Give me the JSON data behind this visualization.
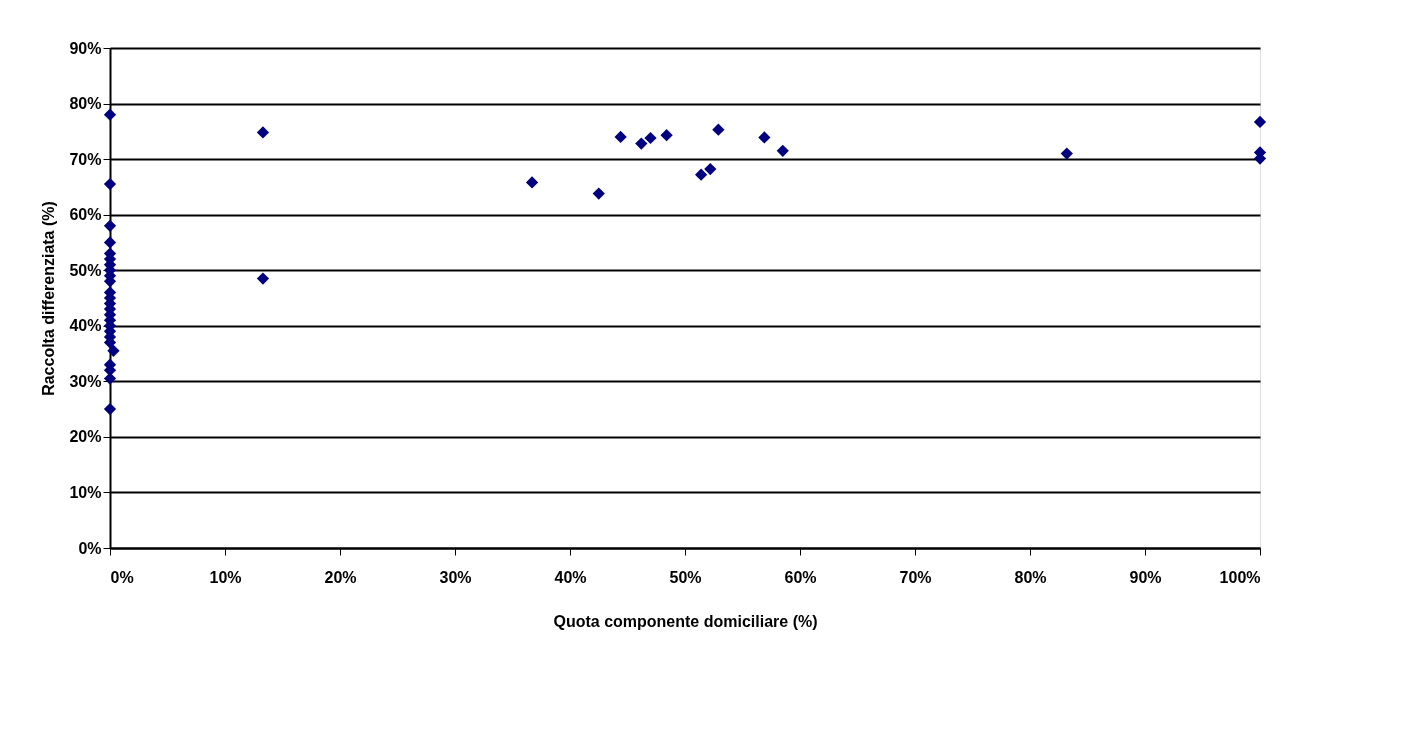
{
  "chart_data": {
    "type": "scatter",
    "xlabel": "Quota componente domiciliare (%)",
    "ylabel": "Raccolta differenziata (%)",
    "marker": "diamond",
    "grid": "y",
    "legend": false,
    "xlim": [
      0,
      100
    ],
    "ylim": [
      0,
      90
    ],
    "xticks": [
      {
        "value": 0,
        "label": "0%"
      },
      {
        "value": 10,
        "label": "10%"
      },
      {
        "value": 20,
        "label": "20%"
      },
      {
        "value": 30,
        "label": "30%"
      },
      {
        "value": 40,
        "label": "40%"
      },
      {
        "value": 50,
        "label": "50%"
      },
      {
        "value": 60,
        "label": "60%"
      },
      {
        "value": 70,
        "label": "70%"
      },
      {
        "value": 80,
        "label": "80%"
      },
      {
        "value": 90,
        "label": "90%"
      },
      {
        "value": 100,
        "label": "100%"
      }
    ],
    "yticks": [
      {
        "value": 0,
        "label": "0%"
      },
      {
        "value": 10,
        "label": "10%"
      },
      {
        "value": 20,
        "label": "20%"
      },
      {
        "value": 30,
        "label": "30%"
      },
      {
        "value": 40,
        "label": "40%"
      },
      {
        "value": 50,
        "label": "50%"
      },
      {
        "value": 60,
        "label": "60%"
      },
      {
        "value": 70,
        "label": "70%"
      },
      {
        "value": 80,
        "label": "80%"
      },
      {
        "value": 90,
        "label": "90%"
      }
    ],
    "series": [
      {
        "color": "#000080",
        "x": [
          0,
          0,
          0,
          0,
          0,
          0,
          0,
          0,
          0,
          0,
          0,
          0,
          0,
          0,
          0,
          0,
          0,
          0,
          0,
          0,
          0.3,
          0,
          0,
          0,
          0,
          13.3,
          13.3,
          36.7,
          42.5,
          44.4,
          46.2,
          47,
          48.4,
          51.4,
          52.2,
          52.9,
          56.9,
          58.5,
          83.2,
          100,
          100,
          100
        ],
        "values": [
          78,
          65.5,
          58,
          55,
          53,
          52,
          51,
          50,
          49,
          48,
          46,
          45,
          44,
          43,
          42,
          41,
          40,
          39,
          38,
          37,
          35.5,
          33,
          32,
          30.5,
          25,
          74.8,
          48.5,
          65.8,
          63.8,
          74,
          72.8,
          73.8,
          74.3,
          67.2,
          68.2,
          75.3,
          73.9,
          71.5,
          71,
          76.7,
          71.2,
          70.1
        ]
      }
    ]
  }
}
